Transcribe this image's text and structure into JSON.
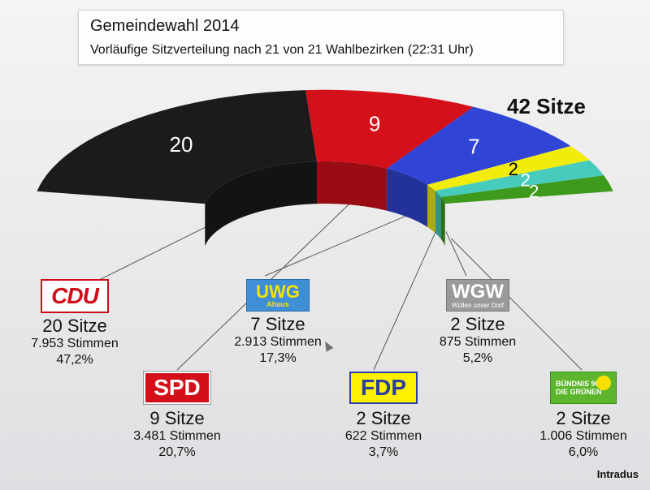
{
  "header": {
    "title": "Gemeindewahl 2014",
    "subtitle": "Vorläufige Sitzverteilung nach 21 von 21 Wahlbezirken (22:31 Uhr)"
  },
  "total_seats_label": "42 Sitze",
  "watermark": "Intradus",
  "chart_data": {
    "type": "pie",
    "title": "Gemeindewahl 2014",
    "subtitle": "Vorläufige Sitzverteilung nach 21 von 21 Wahlbezirken (22:31 Uhr)",
    "total": 42,
    "categories": [
      "CDU",
      "SPD",
      "UWG",
      "FDP",
      "WGW",
      "GRÜNE"
    ],
    "values": [
      20,
      9,
      7,
      2,
      2,
      2
    ],
    "colors": [
      "#1b1b1b",
      "#d4101a",
      "#3045d6",
      "#f2ec0c",
      "#46cbbd",
      "#3e9a1d"
    ],
    "labels": [
      "20",
      "9",
      "7",
      "2",
      "2",
      "2"
    ],
    "label_colors": [
      "#ffffff",
      "#ffffff",
      "#ffffff",
      "#000000",
      "#ffffff",
      "#ffffff"
    ]
  },
  "parties": {
    "cdu": {
      "logo": "CDU",
      "seats": "20 Sitze",
      "votes": "7.953 Stimmen",
      "pct": "47,2%"
    },
    "spd": {
      "logo": "SPD",
      "seats": "9 Sitze",
      "votes": "3.481 Stimmen",
      "pct": "20,7%"
    },
    "uwg": {
      "logo": "UWG",
      "logo_sub": "Ahaus",
      "seats": "7 Sitze",
      "votes": "2.913 Stimmen",
      "pct": "17,3%"
    },
    "fdp": {
      "logo": "FDP",
      "seats": "2 Sitze",
      "votes": "622 Stimmen",
      "pct": "3,7%"
    },
    "wgw": {
      "logo": "WGW",
      "logo_sub": "Wüllen unser Dorf",
      "seats": "2 Sitze",
      "votes": "875 Stimmen",
      "pct": "5,2%"
    },
    "gruene": {
      "logo_line1": "BÜNDNIS 90",
      "logo_line2": "DIE GRÜNEN",
      "seats": "2 Sitze",
      "votes": "1.006 Stimmen",
      "pct": "6,0%"
    }
  }
}
